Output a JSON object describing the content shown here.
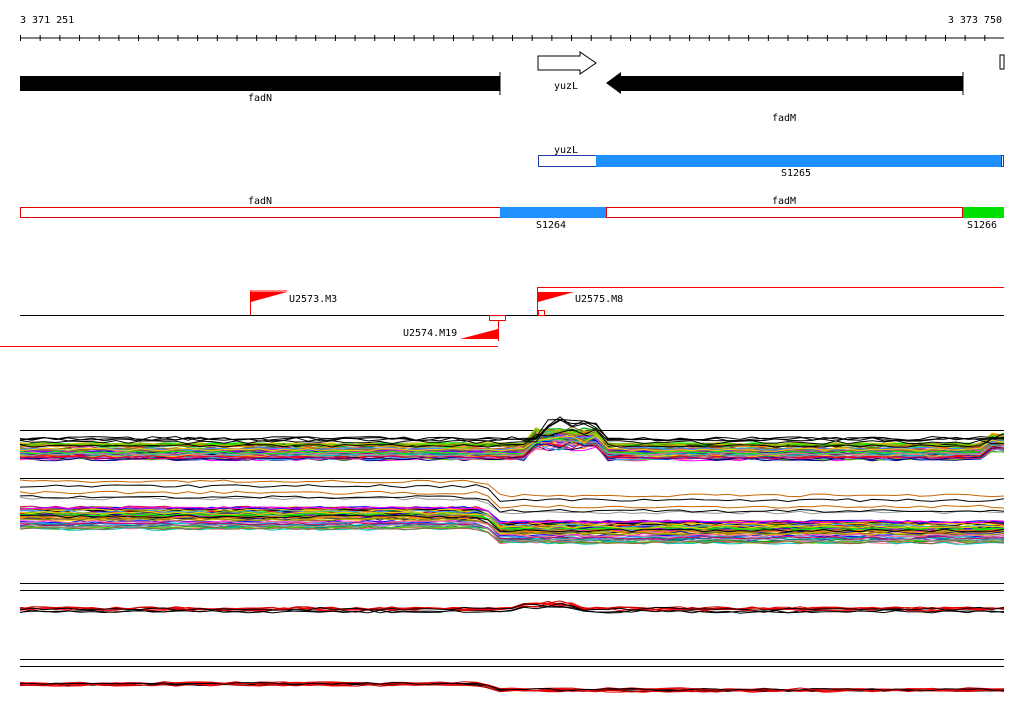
{
  "ruler": {
    "start_label": "3 371 251",
    "end_label": "3 373 750"
  },
  "genes": [
    {
      "name": "fadN",
      "strand": "+",
      "kind": "annotated"
    },
    {
      "name": "yuzL",
      "strand": "+",
      "kind": "predicted"
    },
    {
      "name": "fadM",
      "strand": "-",
      "kind": "annotated"
    }
  ],
  "gene_labels": {
    "fadN": "fadN",
    "yuzL": "yuzL",
    "fadM": "fadM"
  },
  "segments": {
    "s1265": "S1265",
    "s1264": "S1264",
    "s1266": "S1266",
    "seg_yuzL": "yuzL",
    "seg_fadN": "fadN",
    "seg_fadM": "fadM"
  },
  "promoters": {
    "u2573": "U2573.M3",
    "u2575": "U2575.M8",
    "u2574": "U2574.M19"
  },
  "colors": {
    "gene_fill": "#000000",
    "segment_blue": "#1e90ff",
    "segment_green": "#00e000",
    "outline_red": "#e00000",
    "outline_blue": "#1c3fa8",
    "promoter_red": "#ff0000"
  }
}
